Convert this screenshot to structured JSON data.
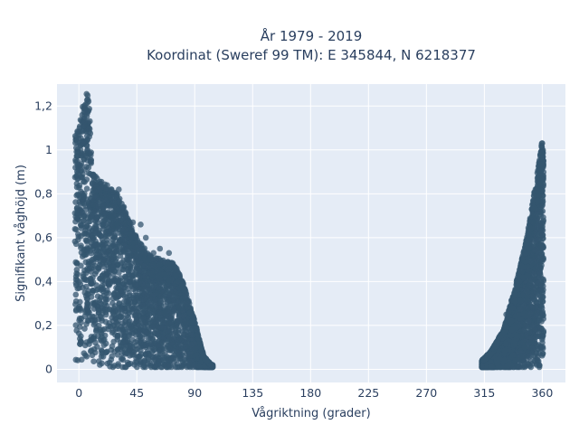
{
  "chart_data": {
    "type": "scatter",
    "title": "År 1979 - 2019",
    "subtitle": "Koordinat (Sweref 99 TM): E 345844, N 6218377",
    "xlabel": "Vågriktning (grader)",
    "ylabel": "Signifikant våghöjd (m)",
    "xlim": [
      -17,
      378
    ],
    "ylim": [
      -0.06,
      1.3
    ],
    "x_ticks": [
      0,
      45,
      90,
      135,
      180,
      225,
      270,
      315,
      360
    ],
    "x_tick_labels": [
      "0",
      "45",
      "90",
      "135",
      "180",
      "225",
      "270",
      "315",
      "360"
    ],
    "y_ticks": [
      0,
      0.2,
      0.4,
      0.6,
      0.8,
      1.0,
      1.2
    ],
    "y_tick_labels": [
      "0",
      "0,2",
      "0,4",
      "0,6",
      "0,8",
      "1",
      "1,2"
    ],
    "grid": true,
    "marker_color": "#34566f",
    "background_color": "#e5ecf6",
    "clusters": [
      {
        "direction_range": [
          -3,
          104
        ],
        "upper_envelope": [
          [
            0,
            1.1
          ],
          [
            3,
            1.2
          ],
          [
            5,
            1.27
          ],
          [
            8,
            1.25
          ],
          [
            10,
            0.9
          ],
          [
            20,
            0.85
          ],
          [
            30,
            0.8
          ],
          [
            45,
            0.6
          ],
          [
            55,
            0.52
          ],
          [
            65,
            0.5
          ],
          [
            75,
            0.48
          ],
          [
            82,
            0.38
          ],
          [
            90,
            0.22
          ],
          [
            97,
            0.06
          ],
          [
            103,
            0.02
          ]
        ],
        "outliers": [
          [
            25,
            0.82
          ],
          [
            31,
            0.82
          ],
          [
            35,
            0.74
          ],
          [
            42,
            0.67
          ],
          [
            48,
            0.66
          ],
          [
            52,
            0.6
          ],
          [
            58,
            0.53
          ],
          [
            63,
            0.55
          ],
          [
            70,
            0.53
          ],
          [
            40,
            0.58
          ]
        ]
      },
      {
        "direction_range": [
          313,
          361
        ],
        "upper_envelope": [
          [
            313,
            0.04
          ],
          [
            320,
            0.08
          ],
          [
            330,
            0.18
          ],
          [
            340,
            0.4
          ],
          [
            348,
            0.6
          ],
          [
            355,
            0.85
          ],
          [
            358,
            0.98
          ],
          [
            360,
            1.04
          ],
          [
            361,
            1.02
          ]
        ],
        "outliers": [
          [
            327,
            0.15
          ],
          [
            332,
            0.25
          ],
          [
            336,
            0.22
          ],
          [
            345,
            0.42
          ]
        ]
      }
    ]
  }
}
